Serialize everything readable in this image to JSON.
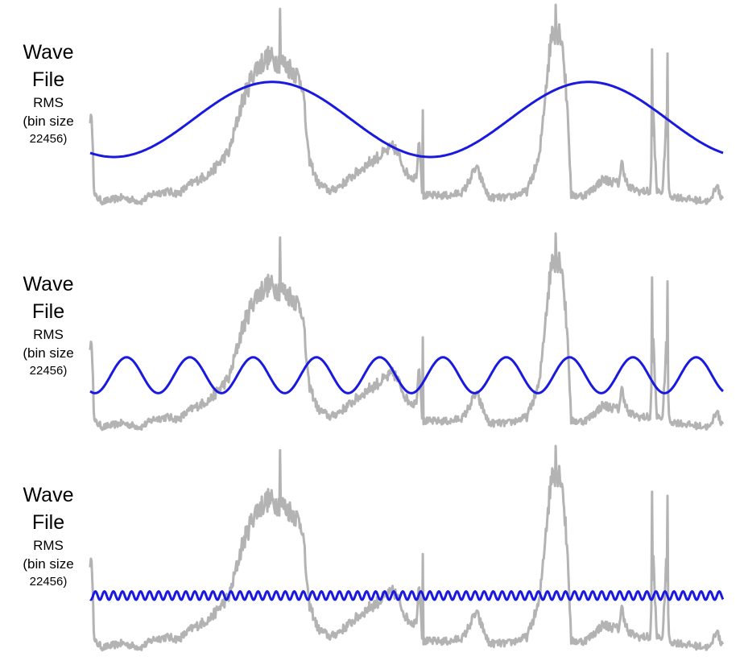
{
  "chart_data": [
    {
      "type": "line",
      "title_lines": [
        "Wave",
        "File",
        "RMS",
        "(bin size",
        "22456)"
      ],
      "colors": {
        "rms": "#b3b3b3",
        "sine": "#1a1adf"
      },
      "sine_cycles": 2,
      "sine_amplitude": 0.37,
      "sine_offset": 0.25
    },
    {
      "type": "line",
      "title_lines": [
        "Wave",
        "File",
        "RMS",
        "(bin size",
        "22456)"
      ],
      "colors": {
        "rms": "#b3b3b3",
        "sine": "#1a1adf"
      },
      "sine_cycles": 10,
      "sine_amplitude": 0.18,
      "sine_offset": 0.2
    },
    {
      "type": "line",
      "title_lines": [
        "Wave",
        "File",
        "RMS",
        "(bin size",
        "22456)"
      ],
      "colors": {
        "rms": "#b3b3b3",
        "sine": "#1a1adf"
      },
      "sine_cycles": 70,
      "sine_amplitude": 0.04,
      "sine_offset": 0.26
    }
  ]
}
